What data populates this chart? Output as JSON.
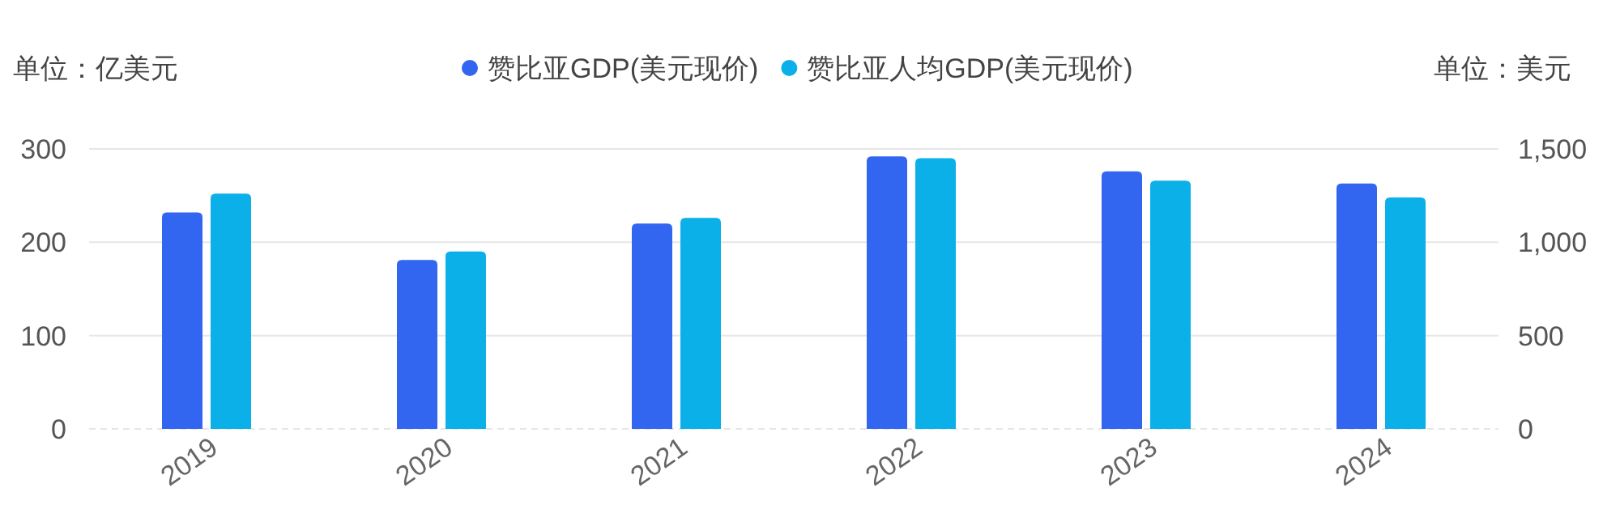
{
  "chart_data": {
    "type": "bar",
    "ylabel": "单位：亿美元",
    "y2label": "单位：美元",
    "categories": [
      "2019",
      "2020",
      "2021",
      "2022",
      "2023",
      "2024"
    ],
    "series": [
      {
        "name": "赞比亚GDP(美元现价)",
        "color": "#3366f0",
        "values": [
          232,
          181,
          220,
          292,
          276,
          263
        ]
      },
      {
        "name": "赞比亚人均GDP(美元现价)",
        "color": "#0bb0e8",
        "axis": "y2",
        "values": [
          1260,
          950,
          1130,
          1450,
          1330,
          1240
        ]
      }
    ],
    "ylim": [
      0,
      300
    ],
    "yticks": [
      0,
      100,
      200,
      300
    ],
    "y2lim": [
      0,
      1500
    ],
    "y2ticks": [
      0,
      {
        "value": 500,
        "label": "500"
      },
      {
        "value": 1000,
        "label": "1,000"
      },
      {
        "value": 1500,
        "label": "1,500"
      }
    ],
    "grid": "y",
    "legend": "top"
  }
}
